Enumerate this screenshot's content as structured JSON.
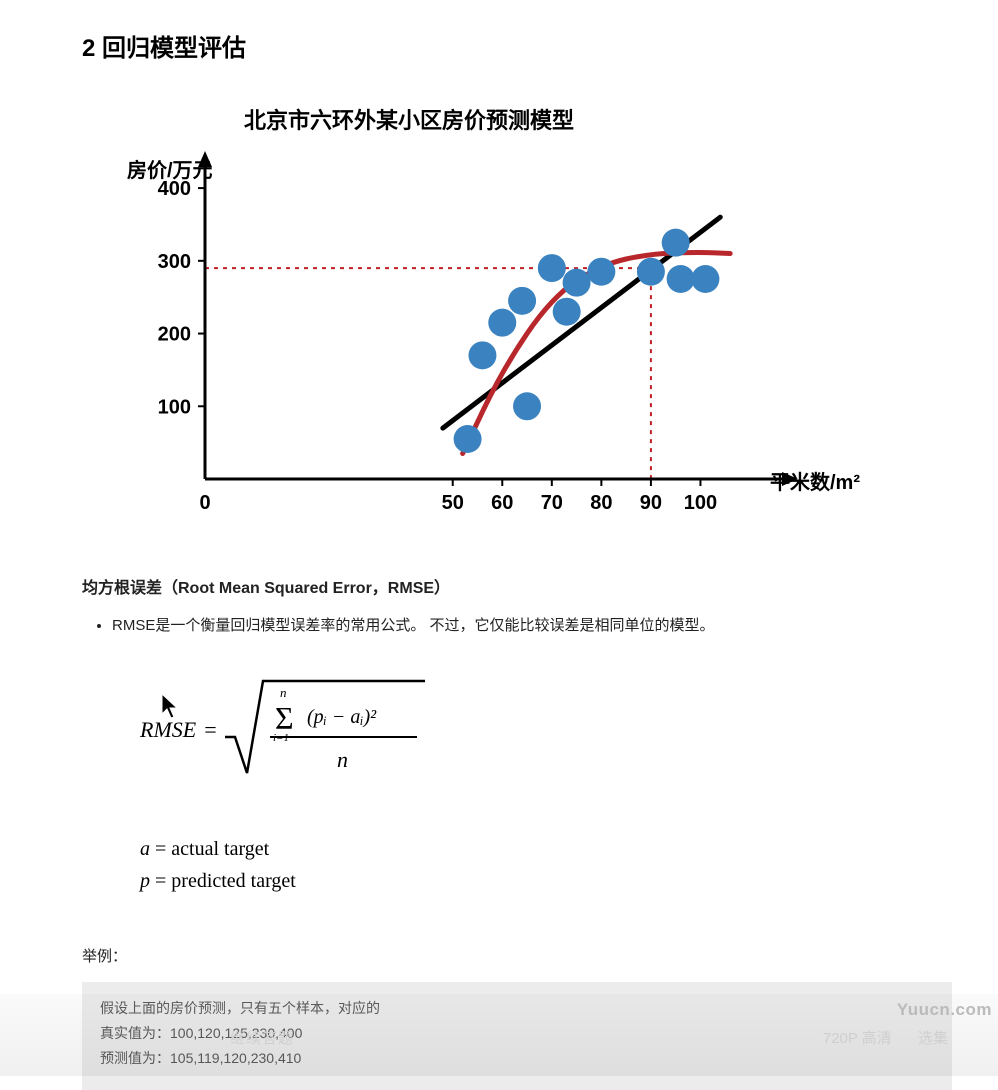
{
  "section_heading": "2 回归模型评估",
  "chart": {
    "title": "北京市六环外某小区房价预测模型",
    "type": "scatter+line",
    "ylabel": "房价/万元",
    "xlabel": "平米数/m²",
    "ytick_labels": [
      "100",
      "200",
      "300",
      "400"
    ],
    "xtick_labels": [
      "0",
      "50",
      "60",
      "70",
      "80",
      "90",
      "100"
    ],
    "ylim": [
      0,
      440
    ],
    "xlim": [
      0,
      110
    ],
    "axis_color": "#000000",
    "axis_width": 3,
    "tick_fontsize": 20,
    "label_fontsize": 20,
    "title_fontsize": 22,
    "background_color": "#ffffff",
    "scatter": {
      "color": "#3b83c0",
      "radius": 14,
      "points": [
        {
          "x": 53,
          "y": 55
        },
        {
          "x": 56,
          "y": 170
        },
        {
          "x": 60,
          "y": 215
        },
        {
          "x": 64,
          "y": 245
        },
        {
          "x": 65,
          "y": 100
        },
        {
          "x": 70,
          "y": 290
        },
        {
          "x": 73,
          "y": 230
        },
        {
          "x": 75,
          "y": 270
        },
        {
          "x": 80,
          "y": 285
        },
        {
          "x": 90,
          "y": 285
        },
        {
          "x": 95,
          "y": 325
        },
        {
          "x": 96,
          "y": 275
        },
        {
          "x": 101,
          "y": 275
        }
      ]
    },
    "linear_line": {
      "color": "#000000",
      "width": 5,
      "start": {
        "x": 48,
        "y": 70
      },
      "end": {
        "x": 104,
        "y": 360
      }
    },
    "curve_line": {
      "color": "#b8272c",
      "width": 5,
      "points": [
        {
          "x": 52,
          "y": 35
        },
        {
          "x": 60,
          "y": 150
        },
        {
          "x": 70,
          "y": 250
        },
        {
          "x": 80,
          "y": 295
        },
        {
          "x": 90,
          "y": 310
        },
        {
          "x": 100,
          "y": 312
        },
        {
          "x": 106,
          "y": 310
        }
      ]
    },
    "guide_lines": {
      "color": "#c02026",
      "dash": "4,5",
      "width": 2,
      "horizontal_y": 290,
      "vertical_x": 90
    }
  },
  "subheading": "均方根误差（Root Mean Squared Error，RMSE）",
  "bullet_text": "RMSE是一个衡量回归模型误差率的常用公式。 不过，它仅能比较误差是相同单位的模型。",
  "formula": {
    "label": "RMSE",
    "sum_upper": "n",
    "sum_lower": "i=1",
    "term": "(pᵢ − aᵢ)²",
    "denominator": "n"
  },
  "legend": {
    "a": "actual target",
    "p": "predicted target"
  },
  "example_label": "举例：",
  "example_box": {
    "line1": "假设上面的房价预测，只有五个样本，对应的",
    "line2_label": "真实值为：",
    "line2_values": "100,120,125,230,400",
    "line3_label": "预测值为：",
    "line3_values": "105,119,120,230,410"
  },
  "overlay": {
    "left_text": "继续答题",
    "quality": "720P 高清",
    "select": "选集"
  },
  "watermark": "Yuucn.com"
}
